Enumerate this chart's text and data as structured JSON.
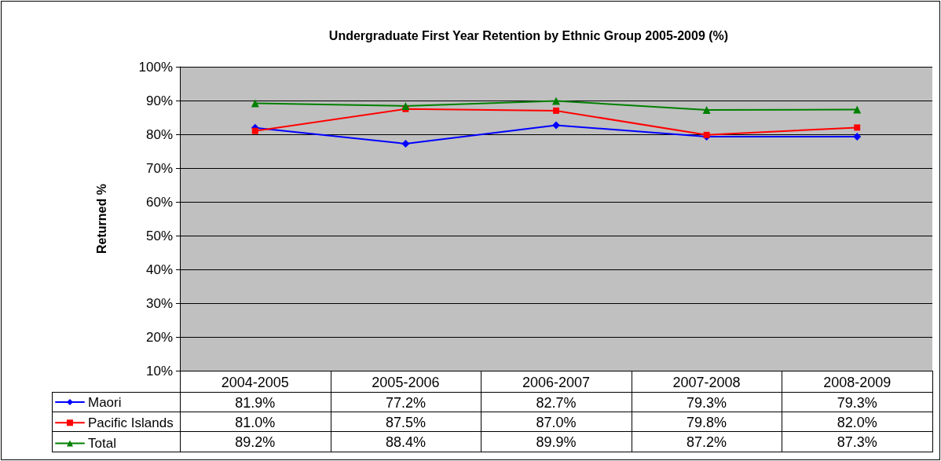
{
  "chart_data": {
    "type": "line",
    "title": "Undergraduate First Year Retention by Ethnic Group 2005-2009 (%)",
    "ylabel": "Returned %",
    "categories": [
      "2004-2005",
      "2005-2006",
      "2006-2007",
      "2007-2008",
      "2008-2009"
    ],
    "series": [
      {
        "name": "Maori",
        "color": "#0000ff",
        "marker": "diamond",
        "values": [
          81.9,
          77.2,
          82.7,
          79.3,
          79.3
        ],
        "value_labels": [
          "81.9%",
          "77.2%",
          "82.7%",
          "79.3%",
          "79.3%"
        ]
      },
      {
        "name": "Pacific Islands",
        "color": "#ff0000",
        "marker": "square",
        "values": [
          81.0,
          87.5,
          87.0,
          79.8,
          82.0
        ],
        "value_labels": [
          "81.0%",
          "87.5%",
          "87.0%",
          "79.8%",
          "82.0%"
        ]
      },
      {
        "name": "Total",
        "color": "#008000",
        "marker": "triangle",
        "values": [
          89.2,
          88.4,
          89.9,
          87.2,
          87.3
        ],
        "value_labels": [
          "89.2%",
          "88.4%",
          "89.9%",
          "87.2%",
          "87.3%"
        ]
      }
    ],
    "ylim": [
      10,
      100
    ],
    "yticks": [
      {
        "value": 10,
        "label": "10%"
      },
      {
        "value": 20,
        "label": "20%"
      },
      {
        "value": 30,
        "label": "30%"
      },
      {
        "value": 40,
        "label": "40%"
      },
      {
        "value": 50,
        "label": "50%"
      },
      {
        "value": 60,
        "label": "60%"
      },
      {
        "value": 70,
        "label": "70%"
      },
      {
        "value": 80,
        "label": "80%"
      },
      {
        "value": 90,
        "label": "90%"
      },
      {
        "value": 100,
        "label": "100%"
      }
    ],
    "grid": "y",
    "legend": "bottom left",
    "line_style": "solid"
  }
}
